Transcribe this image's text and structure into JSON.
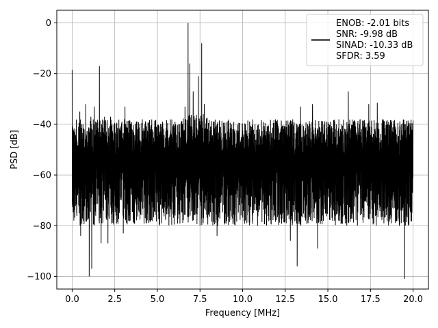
{
  "chart_data": {
    "type": "line",
    "title": "",
    "xlabel": "Frequency [MHz]",
    "ylabel": "PSD [dB]",
    "xlim": [
      -0.9,
      20.9
    ],
    "ylim": [
      -105,
      5
    ],
    "x_ticks": [
      0.0,
      2.5,
      5.0,
      7.5,
      10.0,
      12.5,
      15.0,
      17.5,
      20.0
    ],
    "x_tick_labels": [
      "0.0",
      "2.5",
      "5.0",
      "7.5",
      "10.0",
      "12.5",
      "15.0",
      "17.5",
      "20.0"
    ],
    "y_ticks": [
      0,
      -20,
      -40,
      -60,
      -80,
      -100
    ],
    "y_tick_labels": [
      "0",
      "−20",
      "−40",
      "−60",
      "−80",
      "−100"
    ],
    "grid": true,
    "legend_position": "top-right",
    "line_color": "#000000",
    "legend_lines": [
      "ENOB: -2.01 bits",
      "SNR: -9.98 dB",
      "SINAD: -10.33 dB",
      "SFDR: 3.59"
    ],
    "series": [
      {
        "noise_floor_db": [
          -80,
          -36
        ],
        "peaks": [
          {
            "x": 0.0,
            "y": -18.5
          },
          {
            "x": 0.45,
            "y": -35
          },
          {
            "x": 0.8,
            "y": -32
          },
          {
            "x": 1.1,
            "y": -37
          },
          {
            "x": 1.3,
            "y": -33
          },
          {
            "x": 1.6,
            "y": -17
          },
          {
            "x": 1.9,
            "y": -37
          },
          {
            "x": 2.25,
            "y": -37
          },
          {
            "x": 3.1,
            "y": -33
          },
          {
            "x": 6.62,
            "y": -33
          },
          {
            "x": 6.8,
            "y": 0
          },
          {
            "x": 6.9,
            "y": -16
          },
          {
            "x": 7.1,
            "y": -27
          },
          {
            "x": 7.4,
            "y": -21
          },
          {
            "x": 7.6,
            "y": -8
          },
          {
            "x": 7.75,
            "y": -32
          },
          {
            "x": 13.4,
            "y": -33
          },
          {
            "x": 14.1,
            "y": -32
          },
          {
            "x": 16.2,
            "y": -27
          },
          {
            "x": 17.4,
            "y": -32
          },
          {
            "x": 17.9,
            "y": -31.5
          }
        ],
        "dips": [
          {
            "x": 0.5,
            "y": -84
          },
          {
            "x": 1.0,
            "y": -100
          },
          {
            "x": 1.15,
            "y": -97
          },
          {
            "x": 1.7,
            "y": -87
          },
          {
            "x": 2.1,
            "y": -87
          },
          {
            "x": 3.0,
            "y": -83
          },
          {
            "x": 8.5,
            "y": -84
          },
          {
            "x": 12.8,
            "y": -86
          },
          {
            "x": 13.2,
            "y": -96
          },
          {
            "x": 14.4,
            "y": -89
          },
          {
            "x": 19.5,
            "y": -101
          }
        ]
      }
    ]
  }
}
